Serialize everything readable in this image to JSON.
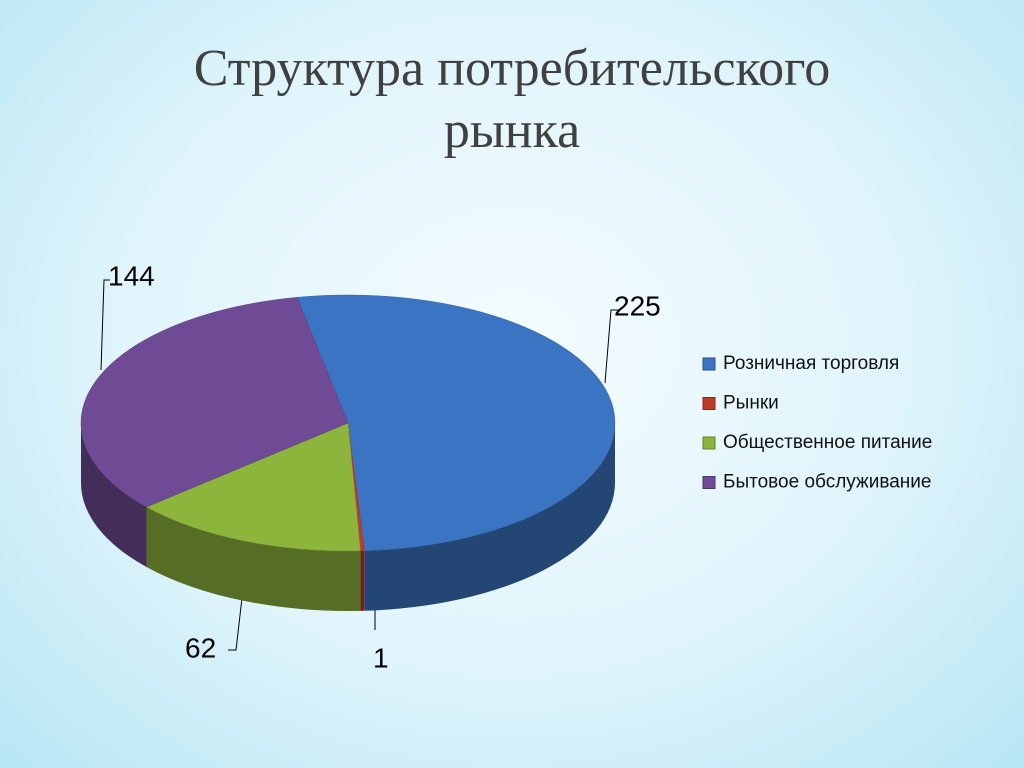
{
  "chart_data": {
    "type": "pie",
    "title": "Структура потребительского рынка",
    "categories": [
      "Розничная торговля",
      "Рынки",
      "Общественное питание",
      "Бытовое обслуживание"
    ],
    "values": [
      225,
      1,
      62,
      144
    ],
    "colors": [
      "#3b74c2",
      "#c0392b",
      "#8db53c",
      "#6f4b95"
    ],
    "legend": "right"
  }
}
